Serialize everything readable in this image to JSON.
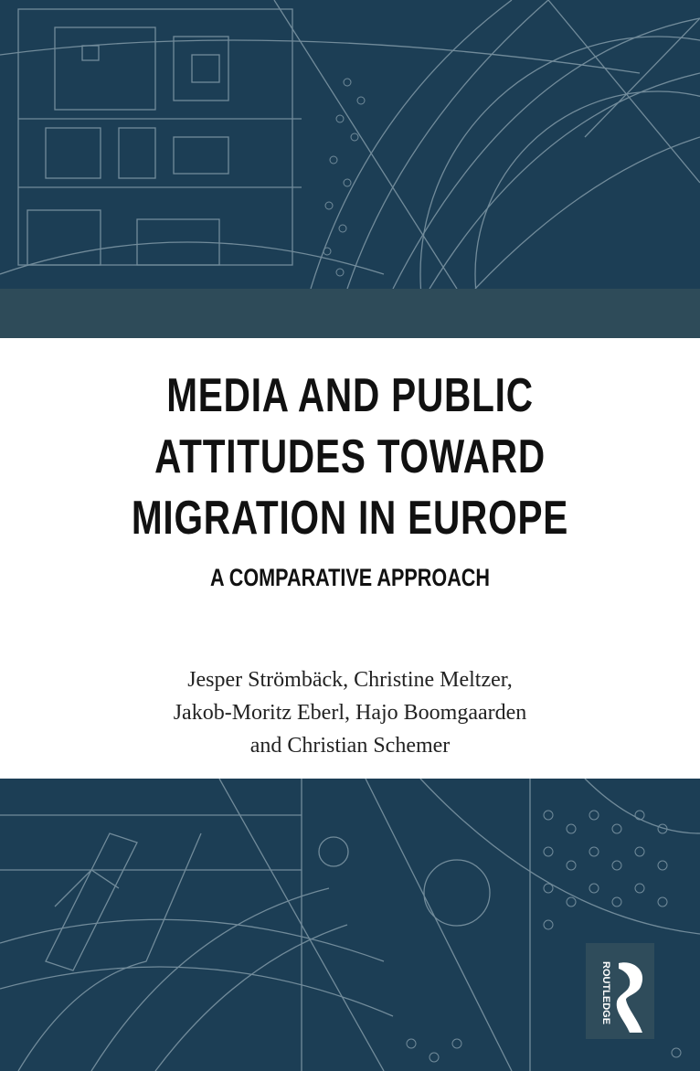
{
  "cover": {
    "title_lines": [
      "MEDIA AND PUBLIC",
      "ATTITUDES TOWARD",
      "MIGRATION IN EUROPE"
    ],
    "subtitle": "A COMPARATIVE APPROACH",
    "author_lines": [
      "Jesper Strömbäck, Christine Meltzer,",
      "Jakob-Moritz Eberl, Hajo Boomgaarden",
      "and Christian Schemer"
    ],
    "publisher_logo": {
      "text": "ROUTLEDGE",
      "icon": "routledge-r-logo"
    },
    "colors": {
      "background": "#1c3e55",
      "band": "#2e4b59",
      "lines": "#8fa6b3",
      "panel": "#ffffff"
    }
  }
}
